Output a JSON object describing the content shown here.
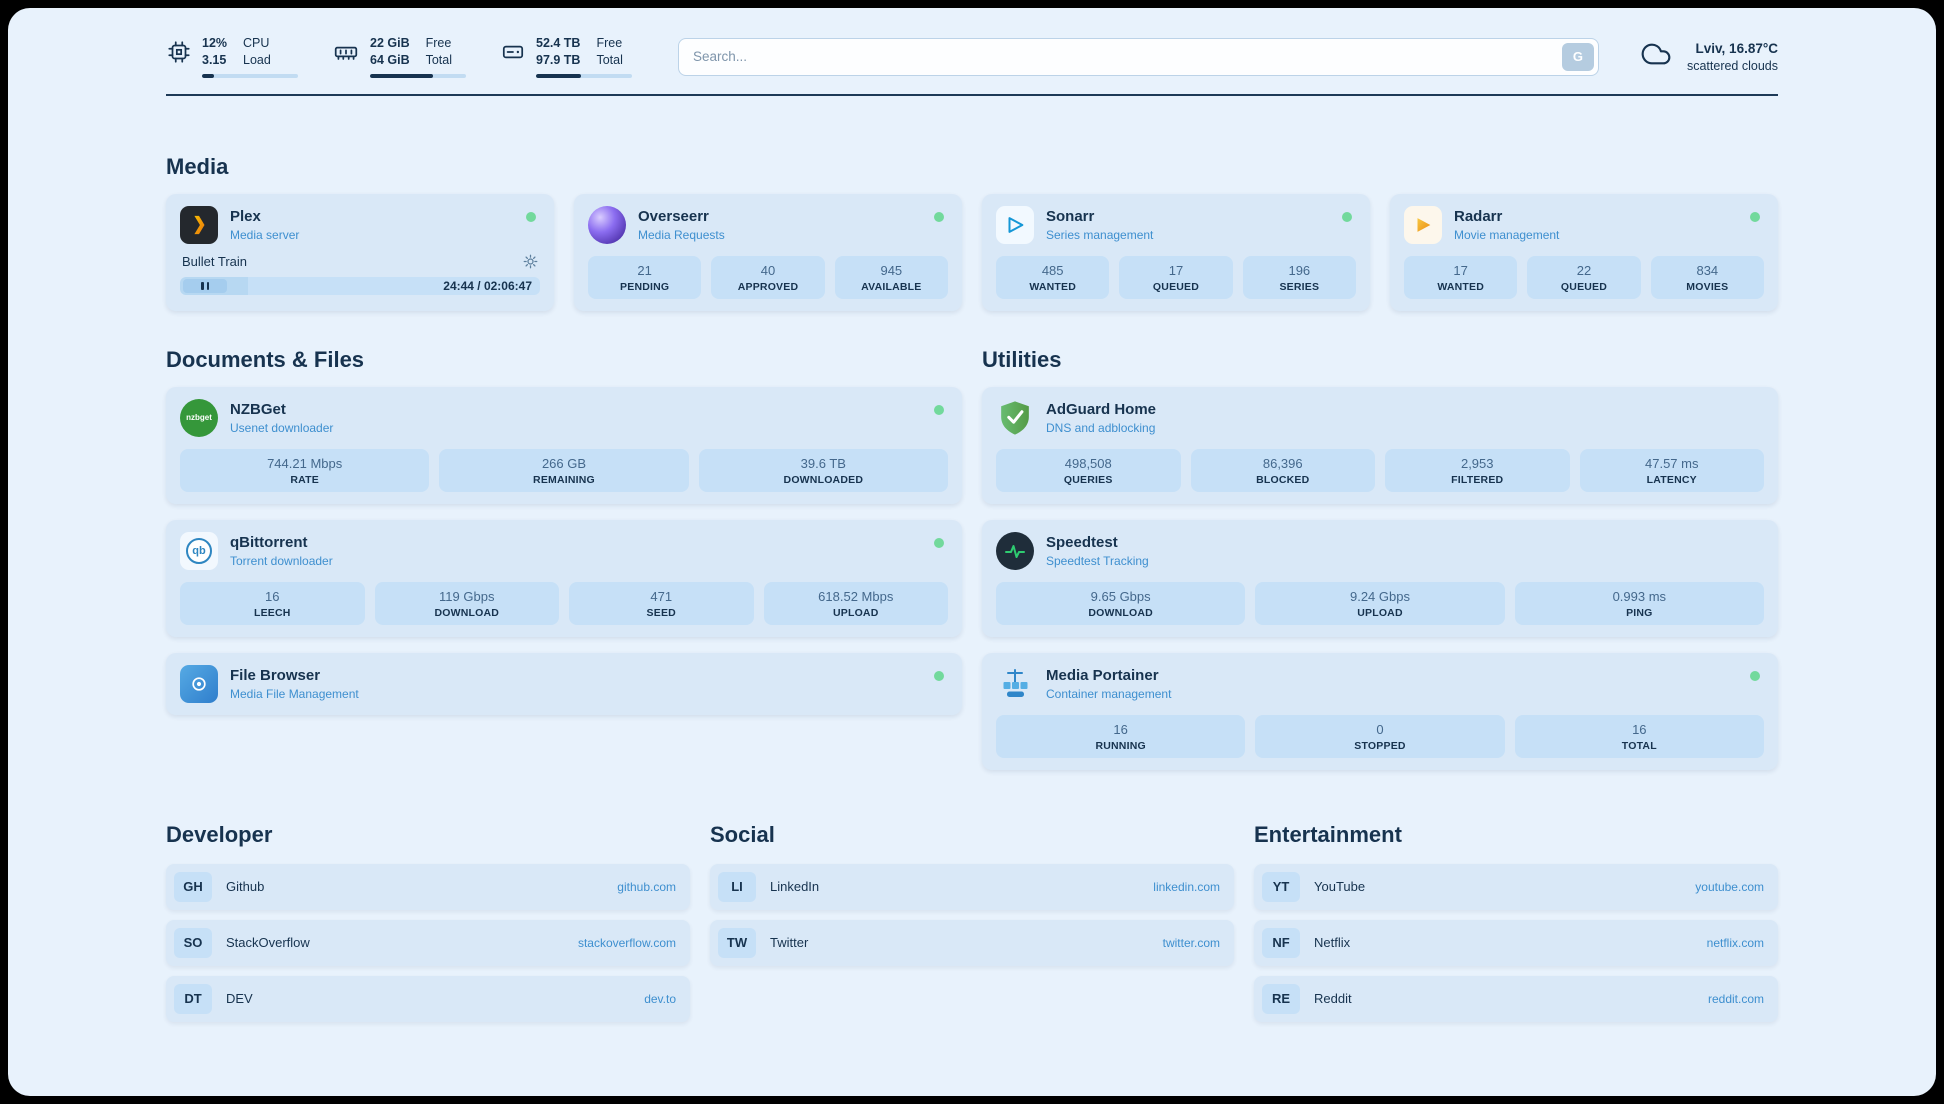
{
  "header": {
    "cpu": {
      "value_top": "12%",
      "value_bottom": "3.15",
      "label_top": "CPU",
      "label_bottom": "Load",
      "bar_percent": 12
    },
    "ram": {
      "value_top": "22 GiB",
      "value_bottom": "64 GiB",
      "label_top": "Free",
      "label_bottom": "Total",
      "bar_percent": 66
    },
    "disk": {
      "value_top": "52.4 TB",
      "value_bottom": "97.9 TB",
      "label_top": "Free",
      "label_bottom": "Total",
      "bar_percent": 47
    },
    "search": {
      "placeholder": "Search...",
      "engine_button": "G"
    },
    "weather": {
      "location": "Lviv, 16.87°C",
      "condition": "scattered clouds"
    }
  },
  "media": {
    "title": "Media",
    "plex": {
      "name": "Plex",
      "subtitle": "Media server",
      "now_playing": "Bullet Train",
      "time": "24:44 / 02:06:47",
      "progress_percent": 19
    },
    "overseerr": {
      "name": "Overseerr",
      "subtitle": "Media Requests",
      "stats": [
        {
          "value": "21",
          "label": "PENDING"
        },
        {
          "value": "40",
          "label": "APPROVED"
        },
        {
          "value": "945",
          "label": "AVAILABLE"
        }
      ]
    },
    "sonarr": {
      "name": "Sonarr",
      "subtitle": "Series management",
      "stats": [
        {
          "value": "485",
          "label": "WANTED"
        },
        {
          "value": "17",
          "label": "QUEUED"
        },
        {
          "value": "196",
          "label": "SERIES"
        }
      ]
    },
    "radarr": {
      "name": "Radarr",
      "subtitle": "Movie management",
      "stats": [
        {
          "value": "17",
          "label": "WANTED"
        },
        {
          "value": "22",
          "label": "QUEUED"
        },
        {
          "value": "834",
          "label": "MOVIES"
        }
      ]
    }
  },
  "documents": {
    "title": "Documents & Files",
    "nzbget": {
      "name": "NZBGet",
      "subtitle": "Usenet downloader",
      "icon_text": "nzbget",
      "stats": [
        {
          "value": "744.21 Mbps",
          "label": "RATE"
        },
        {
          "value": "266 GB",
          "label": "REMAINING"
        },
        {
          "value": "39.6 TB",
          "label": "DOWNLOADED"
        }
      ]
    },
    "qbittorrent": {
      "name": "qBittorrent",
      "subtitle": "Torrent downloader",
      "icon_text": "qb",
      "stats": [
        {
          "value": "16",
          "label": "LEECH"
        },
        {
          "value": "119 Gbps",
          "label": "DOWNLOAD"
        },
        {
          "value": "471",
          "label": "SEED"
        },
        {
          "value": "618.52 Mbps",
          "label": "UPLOAD"
        }
      ]
    },
    "filebrowser": {
      "name": "File Browser",
      "subtitle": "Media File Management"
    }
  },
  "utilities": {
    "title": "Utilities",
    "adguard": {
      "name": "AdGuard Home",
      "subtitle": "DNS and adblocking",
      "stats": [
        {
          "value": "498,508",
          "label": "QUERIES"
        },
        {
          "value": "86,396",
          "label": "BLOCKED"
        },
        {
          "value": "2,953",
          "label": "FILTERED"
        },
        {
          "value": "47.57 ms",
          "label": "LATENCY"
        }
      ]
    },
    "speedtest": {
      "name": "Speedtest",
      "subtitle": "Speedtest Tracking",
      "stats": [
        {
          "value": "9.65 Gbps",
          "label": "DOWNLOAD"
        },
        {
          "value": "9.24 Gbps",
          "label": "UPLOAD"
        },
        {
          "value": "0.993 ms",
          "label": "PING"
        }
      ]
    },
    "portainer": {
      "name": "Media Portainer",
      "subtitle": "Container management",
      "stats": [
        {
          "value": "16",
          "label": "RUNNING"
        },
        {
          "value": "0",
          "label": "STOPPED"
        },
        {
          "value": "16",
          "label": "TOTAL"
        }
      ]
    }
  },
  "bookmarks": [
    {
      "title": "Developer",
      "items": [
        {
          "abbr": "GH",
          "name": "Github",
          "url": "github.com"
        },
        {
          "abbr": "SO",
          "name": "StackOverflow",
          "url": "stackoverflow.com"
        },
        {
          "abbr": "DT",
          "name": "DEV",
          "url": "dev.to"
        }
      ]
    },
    {
      "title": "Social",
      "items": [
        {
          "abbr": "LI",
          "name": "LinkedIn",
          "url": "linkedin.com"
        },
        {
          "abbr": "TW",
          "name": "Twitter",
          "url": "twitter.com"
        }
      ]
    },
    {
      "title": "Entertainment",
      "items": [
        {
          "abbr": "YT",
          "name": "YouTube",
          "url": "youtube.com"
        },
        {
          "abbr": "NF",
          "name": "Netflix",
          "url": "netflix.com"
        },
        {
          "abbr": "RE",
          "name": "Reddit",
          "url": "reddit.com"
        }
      ]
    }
  ]
}
